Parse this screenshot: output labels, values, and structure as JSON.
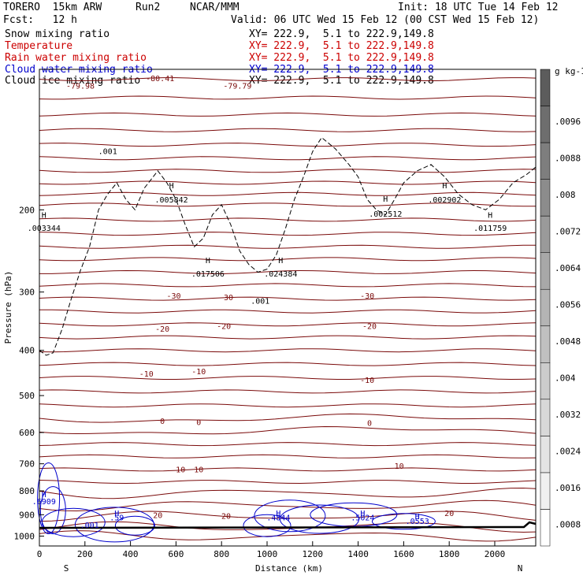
{
  "header": {
    "model": "TORERO  15km ARW",
    "run": "Run2",
    "org": "NCAR/MMM",
    "init": "Init: 18 UTC Tue 14 Feb 12",
    "fcst": "Fcst:   12 h",
    "valid": "Valid: 06 UTC Wed 15 Feb 12 (00 CST Wed 15 Feb 12)"
  },
  "fields": [
    {
      "name": "Snow mixing ratio",
      "xy": "",
      "color": "#000000"
    },
    {
      "name": "Temperature",
      "xy": "XY= 222.9,  5.1 to 222.9,149.8",
      "color": "#cc0000"
    },
    {
      "name": "Rain water mixing ratio",
      "xy": "XY= 222.9,  5.1 to 222.9,149.8",
      "color": "#cc0000"
    },
    {
      "name": "Cloud water mixing ratio",
      "xy": "XY= 222.9,  5.1 to 222.9,149.8",
      "color": "#0000cc"
    },
    {
      "name": "Cloud ice mixing ratio",
      "xy": "XY= 222.9,  5.1 to 222.9,149.8",
      "color": "#000000"
    }
  ],
  "first_xy": "XY= 222.9,  5.1 to 222.9,149.8",
  "colors": {
    "temperature": "#7a0a0a",
    "cloud_water": "#0000cc",
    "cloud_ice": "#000000",
    "terrain": "#000000"
  },
  "chart_data": {
    "type": "line",
    "subtype": "vertical cross-section contour",
    "xlabel": "Distance (km)",
    "ylabel": "Pressure (hPa)",
    "xlim": [
      0,
      2180
    ],
    "ylim": [
      1050,
      100
    ],
    "y_scale": "log-pressure",
    "x_ticks": [
      0,
      200,
      400,
      600,
      800,
      1000,
      1200,
      1400,
      1600,
      1800,
      2000
    ],
    "y_ticks": [
      200,
      300,
      400,
      500,
      600,
      700,
      800,
      900,
      1000
    ],
    "x_end_labels": {
      "left": "S",
      "right": "N"
    },
    "temperature_labels": [
      {
        "x": 180,
        "p": 110,
        "text": "-79.98"
      },
      {
        "x": 530,
        "p": 106,
        "text": "-80.41"
      },
      {
        "x": 870,
        "p": 110,
        "text": "-79.79"
      },
      {
        "x": 590,
        "p": 310,
        "text": "-30"
      },
      {
        "x": 820,
        "p": 312,
        "text": "-30"
      },
      {
        "x": 1440,
        "p": 310,
        "text": "-30"
      },
      {
        "x": 540,
        "p": 365,
        "text": "-20"
      },
      {
        "x": 810,
        "p": 360,
        "text": "-20"
      },
      {
        "x": 1450,
        "p": 360,
        "text": "-20"
      },
      {
        "x": 470,
        "p": 455,
        "text": "-10"
      },
      {
        "x": 700,
        "p": 450,
        "text": "-10"
      },
      {
        "x": 1440,
        "p": 470,
        "text": "-10"
      },
      {
        "x": 540,
        "p": 575,
        "text": "0"
      },
      {
        "x": 700,
        "p": 578,
        "text": "0"
      },
      {
        "x": 1450,
        "p": 580,
        "text": "0"
      },
      {
        "x": 620,
        "p": 730,
        "text": "10"
      },
      {
        "x": 700,
        "p": 730,
        "text": "10"
      },
      {
        "x": 1580,
        "p": 718,
        "text": "10"
      },
      {
        "x": 520,
        "p": 915,
        "text": "20"
      },
      {
        "x": 820,
        "p": 918,
        "text": "20"
      },
      {
        "x": 1800,
        "p": 905,
        "text": "20"
      }
    ],
    "ice_labels": [
      {
        "x": 300,
        "p": 152,
        "text": ".001"
      },
      {
        "x": 580,
        "p": 180,
        "text": "H"
      },
      {
        "x": 580,
        "p": 193,
        "text": ".005842"
      },
      {
        "x": 20,
        "p": 208,
        "text": "H"
      },
      {
        "x": 20,
        "p": 222,
        "text": ".003344"
      },
      {
        "x": 1520,
        "p": 192,
        "text": "H"
      },
      {
        "x": 1520,
        "p": 207,
        "text": ".002512"
      },
      {
        "x": 1780,
        "p": 180,
        "text": "H"
      },
      {
        "x": 1780,
        "p": 193,
        "text": ".002902"
      },
      {
        "x": 1980,
        "p": 208,
        "text": "H"
      },
      {
        "x": 1980,
        "p": 222,
        "text": ".011759"
      },
      {
        "x": 740,
        "p": 260,
        "text": "H"
      },
      {
        "x": 740,
        "p": 278,
        "text": ".017506"
      },
      {
        "x": 1060,
        "p": 260,
        "text": "H"
      },
      {
        "x": 1060,
        "p": 278,
        "text": ".024384"
      },
      {
        "x": 970,
        "p": 318,
        "text": ".001"
      }
    ],
    "cloud_water_labels": [
      {
        "x": 20,
        "p": 825,
        "text": "H"
      },
      {
        "x": 20,
        "p": 855,
        "text": ".6909"
      },
      {
        "x": 340,
        "p": 905,
        "text": "H"
      },
      {
        "x": 340,
        "p": 925,
        "text": ".59"
      },
      {
        "x": 220,
        "p": 960,
        "text": ".001"
      },
      {
        "x": 1050,
        "p": 905,
        "text": "H"
      },
      {
        "x": 1050,
        "p": 925,
        "text": ".4844"
      },
      {
        "x": 1420,
        "p": 905,
        "text": "H"
      },
      {
        "x": 1420,
        "p": 925,
        "text": ".5024"
      },
      {
        "x": 1660,
        "p": 920,
        "text": "H"
      },
      {
        "x": 1660,
        "p": 942,
        "text": ".0553"
      }
    ],
    "colorbar": {
      "units_label": "g kg-1",
      "ticks": [
        ".0096",
        ".0088",
        ".008",
        ".0072",
        ".0064",
        ".0056",
        ".0048",
        ".004",
        ".0032",
        ".0024",
        ".0016",
        ".0008"
      ],
      "min": 0,
      "max": 0.0104,
      "shades": [
        "#ffffff",
        "#f0f0f0",
        "#e4e4e4",
        "#d8d8d8",
        "#cccccc",
        "#c0c0c0",
        "#b4b4b4",
        "#a8a8a8",
        "#9a9a9a",
        "#8c8c8c",
        "#7e7e7e",
        "#6e6e6e",
        "#5c5c5c"
      ]
    }
  }
}
